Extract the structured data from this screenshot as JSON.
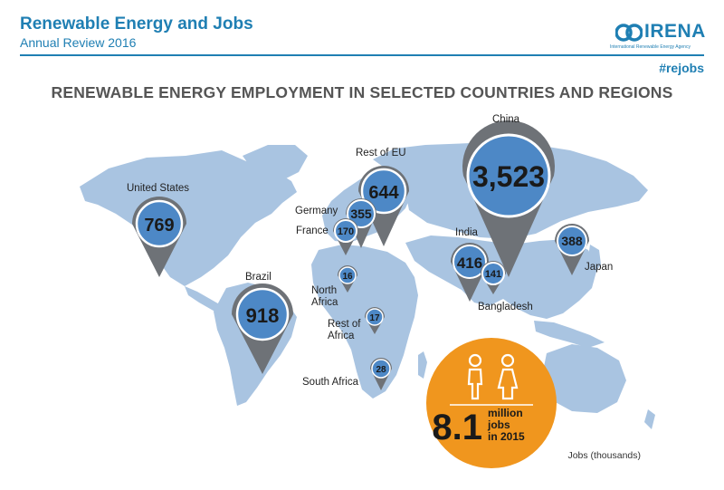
{
  "header": {
    "title": "Renewable Energy and Jobs",
    "subtitle": "Annual Review 2016",
    "brand_name": "IRENA",
    "brand_tagline": "International Renewable Energy Agency",
    "hashtag": "#rejobs"
  },
  "colors": {
    "brand_blue": "#1f7fb3",
    "land": "#a9c4e1",
    "pin_gray": "#6e7277",
    "bubble_blue": "#4d88c6",
    "total_orange": "#f0961e"
  },
  "chart_data": {
    "type": "map",
    "title": "RENEWABLE ENERGY EMPLOYMENT IN SELECTED COUNTRIES AND REGIONS",
    "units": "Jobs (thousands)",
    "points": [
      {
        "region": "United States",
        "value": 769,
        "value_label": "769"
      },
      {
        "region": "Brazil",
        "value": 918,
        "value_label": "918"
      },
      {
        "region": "Rest of EU",
        "value": 644,
        "value_label": "644"
      },
      {
        "region": "Germany",
        "value": 355,
        "value_label": "355"
      },
      {
        "region": "France",
        "value": 170,
        "value_label": "170"
      },
      {
        "region": "China",
        "value": 3523,
        "value_label": "3,523"
      },
      {
        "region": "India",
        "value": 416,
        "value_label": "416"
      },
      {
        "region": "Bangladesh",
        "value": 141,
        "value_label": "141"
      },
      {
        "region": "Japan",
        "value": 388,
        "value_label": "388"
      },
      {
        "region": "North Africa",
        "value": 16,
        "value_label": "16"
      },
      {
        "region": "Rest of Africa",
        "value": 17,
        "value_label": "17"
      },
      {
        "region": "South Africa",
        "value": 28,
        "value_label": "28"
      }
    ],
    "total": {
      "value_label": "8.1",
      "line1": "million",
      "line2": "jobs",
      "line3": "in 2015"
    }
  },
  "labels": {
    "united_states": "United States",
    "brazil": "Brazil",
    "rest_of_eu": "Rest of EU",
    "germany": "Germany",
    "france": "France",
    "china": "China",
    "india": "India",
    "bangladesh": "Bangladesh",
    "japan": "Japan",
    "north_africa_1": "North",
    "north_africa_2": "Africa",
    "rest_of_africa_1": "Rest of",
    "rest_of_africa_2": "Africa",
    "south_africa": "South Africa"
  }
}
